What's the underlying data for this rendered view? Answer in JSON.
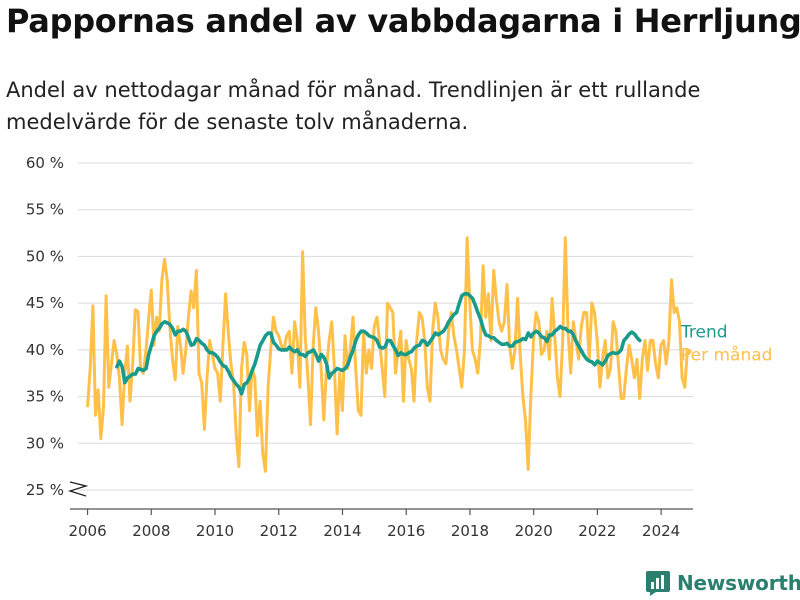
{
  "title": "Pappornas andel av vabbdagarna i Herrljunga",
  "subtitle": "Andel av nettodagar månad för månad. Trendlinjen är ett rullande medelvärde för de senaste tolv månaderna.",
  "brand": {
    "name": "Newsworthy",
    "color": "#2a7f6f"
  },
  "chart_data": {
    "type": "line",
    "y_unit": "%",
    "ylim": [
      25,
      60
    ],
    "yticks": [
      25,
      30,
      35,
      40,
      45,
      50,
      55,
      60
    ],
    "ytick_labels": [
      "25 %",
      "30 %",
      "35 %",
      "40 %",
      "45 %",
      "50 %",
      "55 %",
      "60 %"
    ],
    "xlim": [
      2005.7,
      2025.0
    ],
    "xticks": [
      2006,
      2008,
      2010,
      2012,
      2014,
      2016,
      2018,
      2020,
      2022,
      2024
    ],
    "xtick_labels": [
      "2006",
      "2008",
      "2010",
      "2012",
      "2014",
      "2016",
      "2018",
      "2020",
      "2022",
      "2024"
    ],
    "grid": true,
    "y_axis_break": true,
    "legend_placement": "right end of lines",
    "series": [
      {
        "name": "Per månad",
        "color": "#ffc04a",
        "start": 2006.0,
        "step": 0.0833,
        "values": [
          34,
          38,
          44.7,
          33,
          35.7,
          30.5,
          33.8,
          45.8,
          36,
          38.5,
          41,
          39.5,
          37,
          32,
          37.5,
          40.4,
          34.5,
          38.5,
          44.3,
          44.1,
          38,
          37.5,
          40,
          43.3,
          46.4,
          40.5,
          43.5,
          42,
          47.5,
          49.7,
          47.5,
          42.5,
          39,
          36.8,
          42.5,
          40.5,
          37.5,
          40,
          43.5,
          46.3,
          44.5,
          48.5,
          37.5,
          36.5,
          31.5,
          37,
          41,
          39.5,
          38,
          37.5,
          34.5,
          40.5,
          46,
          42,
          38.5,
          36.5,
          31,
          27.5,
          38,
          40.8,
          39.5,
          33.5,
          38,
          37,
          30.8,
          34.5,
          29,
          27,
          36,
          40,
          43.5,
          42,
          41.5,
          40.5,
          40,
          41.5,
          42,
          37.5,
          43,
          41,
          36,
          50.5,
          41.5,
          37,
          32,
          40.5,
          44.5,
          42,
          38,
          32.5,
          38,
          41,
          43,
          38,
          31,
          37.5,
          33.5,
          41.5,
          38,
          40,
          43.5,
          38,
          33.5,
          33,
          42,
          37.5,
          40,
          38,
          42.5,
          43.5,
          41,
          38,
          35,
          45,
          44.5,
          44,
          37.5,
          40,
          42,
          34.5,
          41,
          39,
          38,
          34.5,
          41,
          44,
          43.5,
          41,
          36,
          34.5,
          42,
          45,
          43.5,
          40,
          39,
          38.5,
          42,
          44,
          41.5,
          40,
          38,
          36,
          40,
          52,
          45,
          40,
          39,
          37.5,
          41,
          49,
          43.5,
          46,
          41,
          48.5,
          45.5,
          43,
          42,
          43,
          47,
          40.5,
          38,
          40,
          45.5,
          39.5,
          35,
          32.5,
          27.2,
          35,
          41,
          44,
          43,
          39.5,
          40,
          42,
          39,
          45.5,
          41.5,
          37,
          35,
          41,
          52,
          42,
          37.5,
          43,
          41,
          39,
          42.5,
          44,
          44,
          39,
          45,
          44,
          41,
          36,
          39,
          41,
          37,
          38,
          43,
          42,
          38.5,
          34.8,
          34.8,
          38,
          40.5,
          39,
          37,
          39,
          34.8,
          39,
          41,
          37.8,
          41,
          41,
          38.5,
          37,
          40.5,
          41,
          38.5,
          41,
          47.5,
          44,
          44.5,
          43,
          37,
          36,
          40,
          39.8
        ],
        "data_labels": false
      },
      {
        "name": "Trend",
        "color": "#1a9a8a",
        "start": 2006.92,
        "step": 0.0833,
        "values": [
          38.2,
          38.8,
          38.2,
          36.5,
          37,
          37.2,
          37.4,
          37.4,
          38,
          37.9,
          37.8,
          38,
          39.5,
          40.5,
          41.5,
          42,
          42.3,
          42.8,
          43,
          42.9,
          42.7,
          42.3,
          41.6,
          42,
          42,
          42.2,
          42,
          41.3,
          40.5,
          40.6,
          41.2,
          41,
          40.7,
          40.5,
          40,
          39.7,
          39.7,
          39.5,
          39.2,
          38.7,
          38.3,
          38.2,
          37.7,
          37.1,
          36.7,
          36.3,
          36,
          35.3,
          36.3,
          36.5,
          37,
          37.8,
          38.5,
          39.5,
          40.5,
          41,
          41.5,
          41.8,
          41.8,
          40.8,
          40.5,
          40.1,
          40,
          40,
          40,
          40.3,
          40,
          39.8,
          40,
          39.5,
          39.5,
          39.3,
          39.7,
          39.8,
          40,
          39.5,
          38.8,
          39.5,
          39.2,
          38.5,
          37,
          37.5,
          37.7,
          38,
          37.9,
          37.8,
          38,
          38.4,
          39.3,
          40,
          41,
          41.6,
          42,
          42,
          41.8,
          41.5,
          41.4,
          41.3,
          41,
          40.3,
          40.2,
          40.3,
          41,
          41,
          40.5,
          40,
          39.4,
          39.7,
          39.5,
          39.5,
          39.7,
          39.8,
          40.2,
          40.4,
          40.5,
          41,
          40.9,
          40.5,
          40.9,
          41.3,
          41.8,
          41.6,
          41.8,
          42,
          42.4,
          43,
          43.4,
          43.8,
          44,
          45,
          45.8,
          46,
          46,
          45.8,
          45.5,
          44.8,
          44,
          43.3,
          42.3,
          41.6,
          41.5,
          41.3,
          41.3,
          41,
          40.8,
          40.6,
          40.6,
          40.7,
          40.4,
          40.4,
          40.8,
          40.9,
          41,
          41.2,
          41.1,
          41.8,
          41.4,
          41.8,
          42,
          41.8,
          41.4,
          41.3,
          40.9,
          41.6,
          41.6,
          42,
          42.2,
          42.5,
          42.3,
          42.3,
          42,
          42,
          41.6,
          40.9,
          40.4,
          39.9,
          39.4,
          39,
          38.8,
          38.7,
          38.4,
          38.8,
          38.6,
          38.4,
          38.8,
          39.4,
          39.6,
          39.7,
          39.6,
          39.7,
          40,
          41,
          41.3,
          41.7,
          41.9,
          41.7,
          41.3,
          41
        ],
        "data_labels": false
      }
    ]
  }
}
